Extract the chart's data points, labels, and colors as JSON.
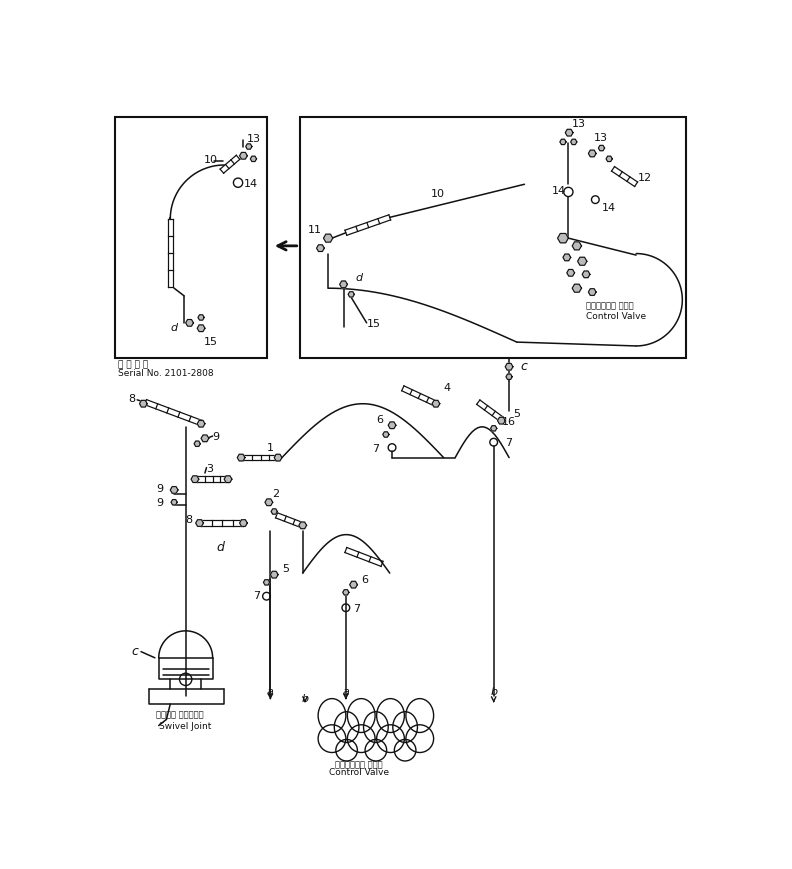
{
  "bg_color": "#ffffff",
  "line_color": "#111111",
  "figure_width": 7.92,
  "figure_height": 8.7,
  "serial_text_jp": "適 用 号 笌",
  "serial_text": "Serial No. 2101-2808",
  "swivel_jp": "スイベル ジョイント",
  "swivel_en": "Swivel Joint",
  "cv_jp": "コントロール バルブ",
  "cv_en": "Control Valve",
  "cv_jp2": "コントロール バルブ",
  "cv_en2": "Control Valve"
}
